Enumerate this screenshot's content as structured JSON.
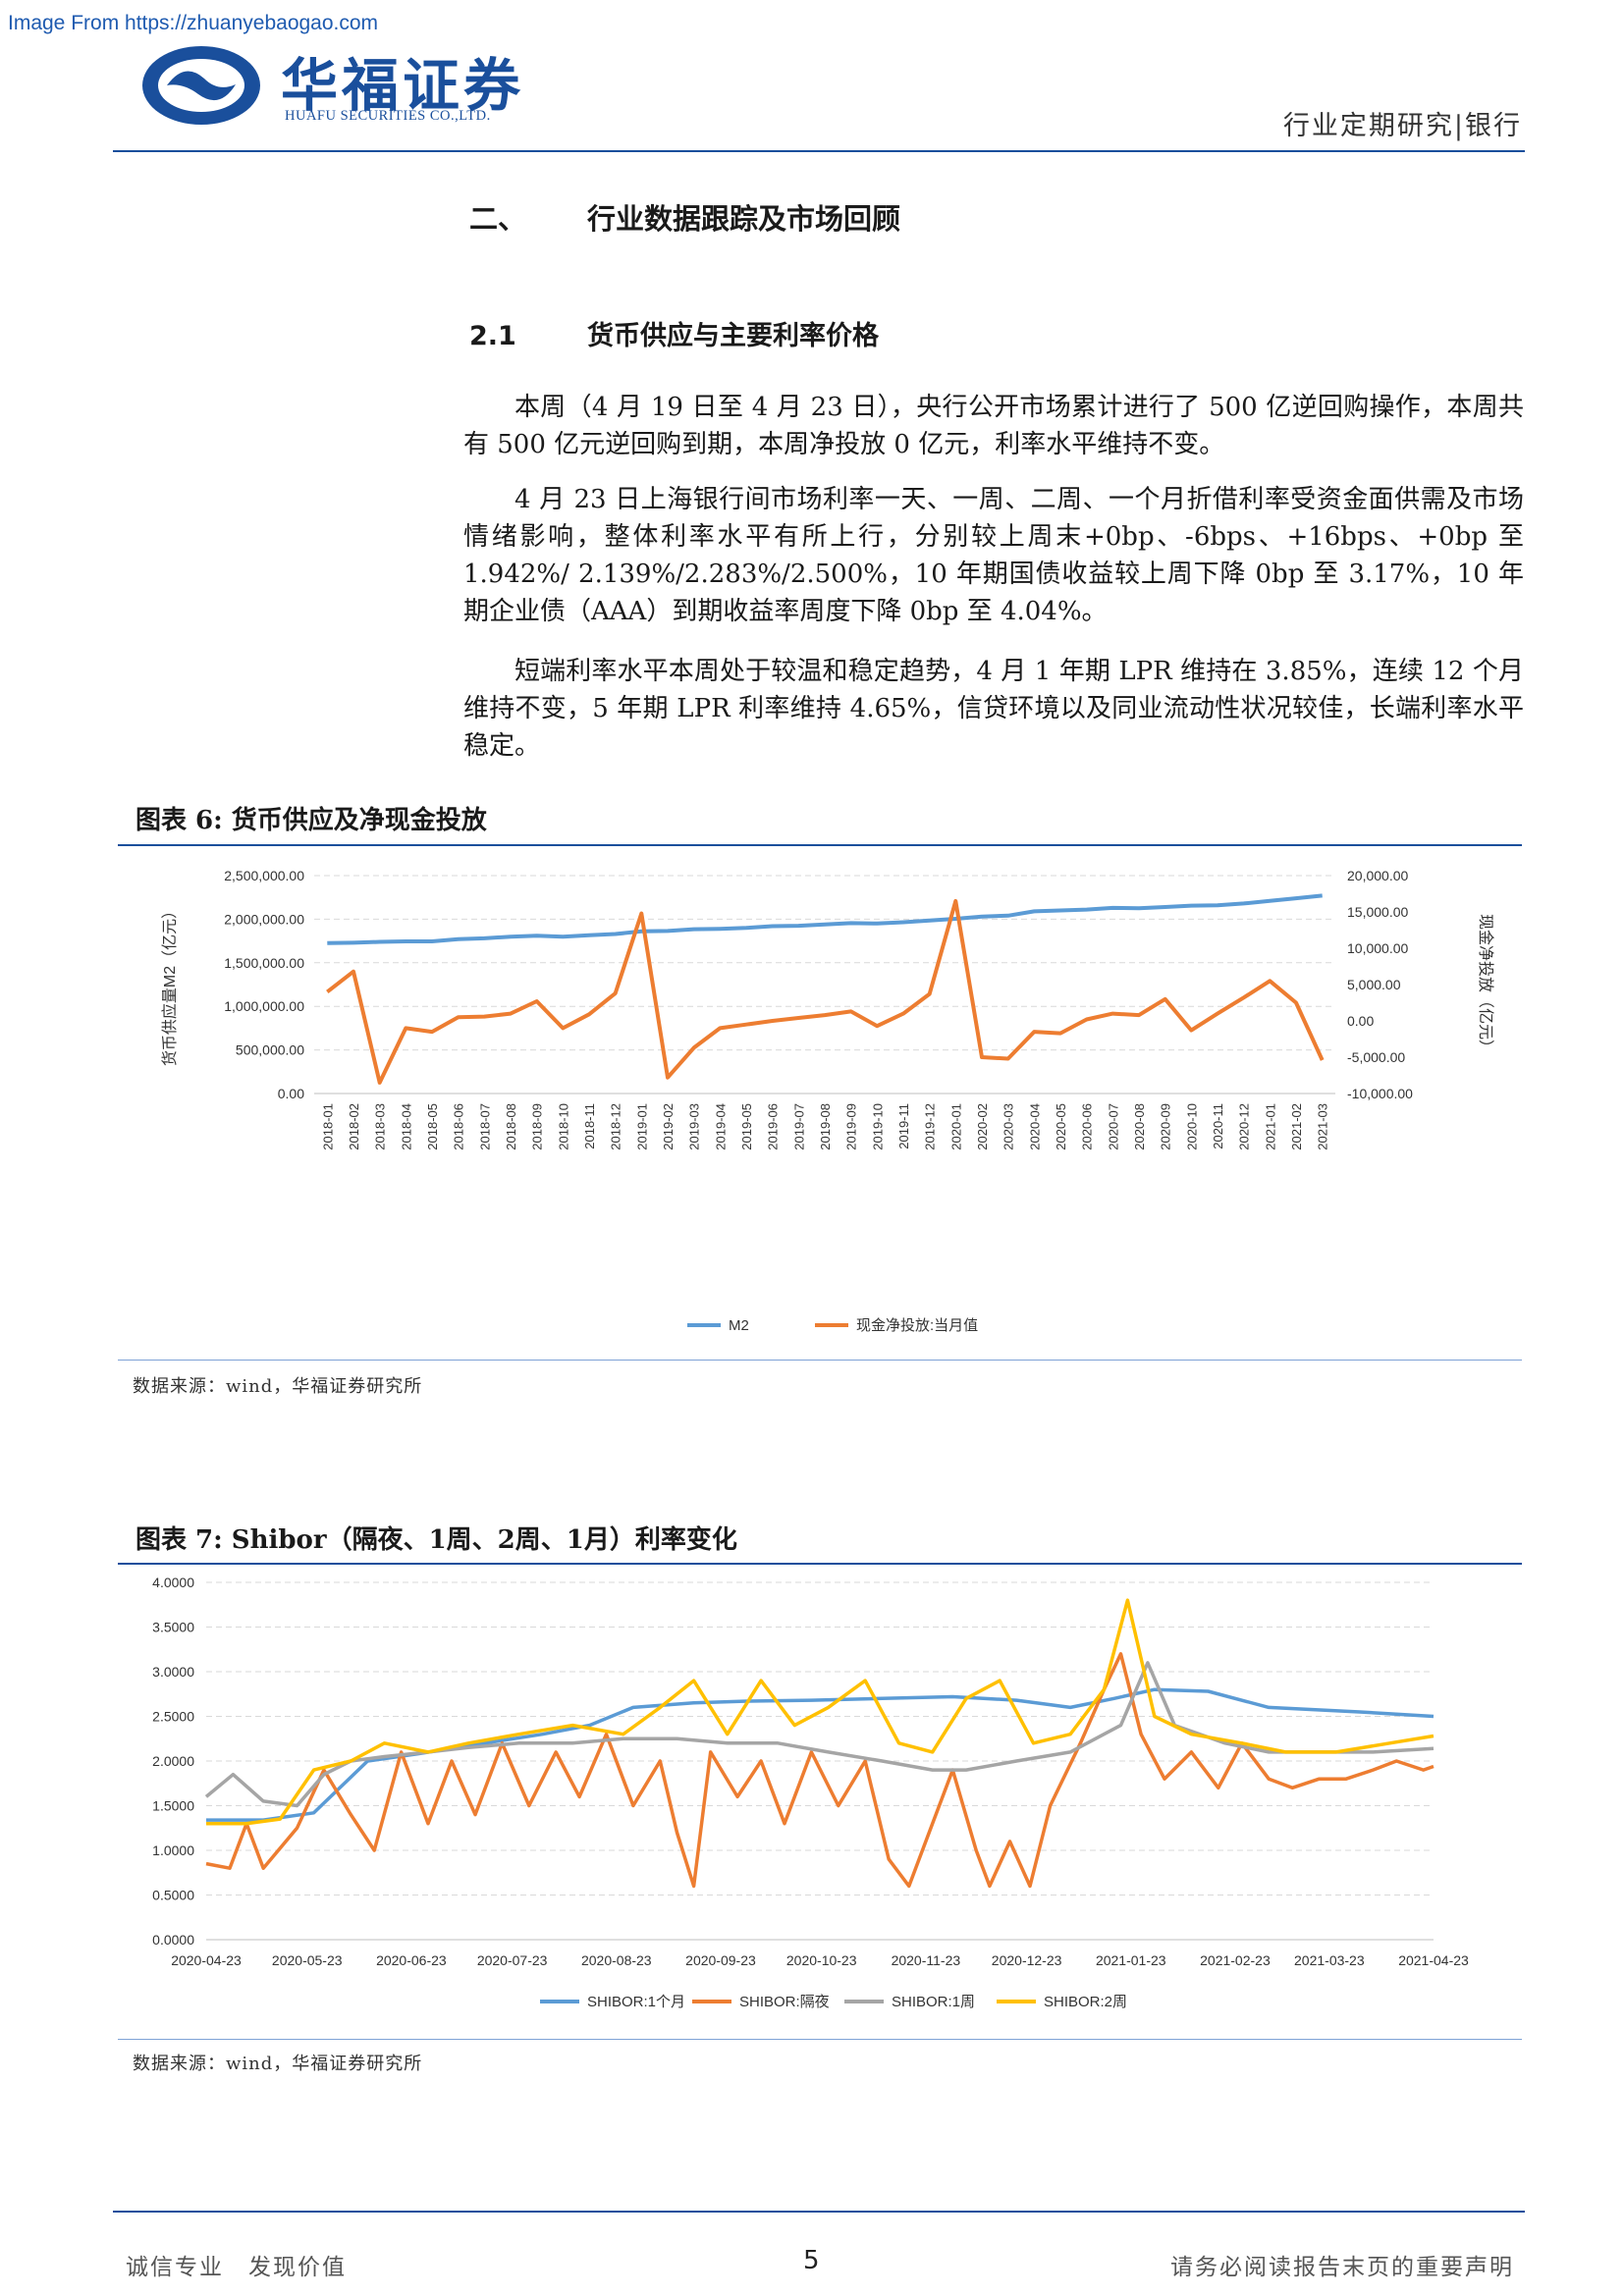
{
  "watermark": "Image From https://zhuanyebaogao.com",
  "header": {
    "company_cn": "华福证券",
    "company_en": "HUAFU SECURITIES CO.,LTD.",
    "section": "行业定期研究|银行",
    "colors": {
      "brand": "#1a4f9c"
    }
  },
  "section_heading": {
    "num": "二、",
    "title": "行业数据跟踪及市场回顾"
  },
  "subsection_heading": {
    "num": "2.1",
    "title": "货币供应与主要利率价格"
  },
  "paragraphs": [
    "本周（4 月 19 日至 4 月 23 日），央行公开市场累计进行了 500 亿逆回购操作，本周共有 500 亿元逆回购到期，本周净投放 0 亿元，利率水平维持不变。",
    "4 月 23 日上海银行间市场利率一天、一周、二周、一个月折借利率受资金面供需及市场情绪影响，整体利率水平有所上行，分别较上周末+0bp、-6bps、+16bps、+0bp 至 1.942%/ 2.139%/2.283%/2.500%，10 年期国债收益较上周下降 0bp 至 3.17%，10 年期企业债（AAA）到期收益率周度下降 0bp 至 4.04%。",
    "短端利率水平本周处于较温和稳定趋势，4 月 1 年期 LPR 维持在 3.85%，连续 12 个月维持不变，5 年期 LPR 利率维持 4.65%，信贷环境以及同业流动性状况较佳，长端利率水平稳定。"
  ],
  "figure6": {
    "title": "图表 6: 货币供应及净现金投放",
    "source": "数据来源：wind，华福证券研究所",
    "y_left_label": "货币供应量M2（亿元）",
    "y_right_label": "现金净投放（亿元）",
    "y_left_ticks": [
      "2,500,000.00",
      "2,000,000.00",
      "1,500,000.00",
      "1,000,000.00",
      "500,000.00",
      "0.00"
    ],
    "y_right_ticks": [
      "20,000.00",
      "15,000.00",
      "10,000.00",
      "5,000.00",
      "0.00",
      "-5,000.00",
      "-10,000.00"
    ],
    "legend": [
      "M2",
      "现金净投放:当月值"
    ]
  },
  "figure7": {
    "title": "图表 7: Shibor（隔夜、1周、2周、1月）利率变化",
    "source": "数据来源：wind，华福证券研究所",
    "y_ticks": [
      "4.0000",
      "3.5000",
      "3.0000",
      "2.5000",
      "2.0000",
      "1.5000",
      "1.0000",
      "0.5000",
      "0.0000"
    ],
    "x_ticks": [
      "2020-04-23",
      "2020-05-23",
      "2020-06-23",
      "2020-07-23",
      "2020-08-23",
      "2020-09-23",
      "2020-10-23",
      "2020-11-23",
      "2020-12-23",
      "2021-01-23",
      "2021-02-23",
      "2021-03-23",
      "2021-04-23"
    ],
    "legend": [
      "SHIBOR:1个月",
      "SHIBOR:隔夜",
      "SHIBOR:1周",
      "SHIBOR:2周"
    ]
  },
  "chart_data": [
    {
      "type": "line",
      "title": "",
      "categories": [
        "2018-01",
        "2018-02",
        "2018-03",
        "2018-04",
        "2018-05",
        "2018-06",
        "2018-07",
        "2018-08",
        "2018-09",
        "2018-10",
        "2018-11",
        "2018-12",
        "2019-01",
        "2019-02",
        "2019-03",
        "2019-04",
        "2019-05",
        "2019-06",
        "2019-07",
        "2019-08",
        "2019-09",
        "2019-10",
        "2019-11",
        "2019-12",
        "2020-01",
        "2020-02",
        "2020-03",
        "2020-04",
        "2020-05",
        "2020-06",
        "2020-07",
        "2020-08",
        "2020-09",
        "2020-10",
        "2020-11",
        "2020-12",
        "2021-01",
        "2021-02",
        "2021-03"
      ],
      "series": [
        {
          "name": "M2",
          "axis": "left",
          "color": "#5b9bd5",
          "values": [
            1725000,
            1730000,
            1740000,
            1745000,
            1745000,
            1770000,
            1780000,
            1800000,
            1810000,
            1800000,
            1815000,
            1830000,
            1860000,
            1865000,
            1885000,
            1890000,
            1900000,
            1920000,
            1925000,
            1940000,
            1955000,
            1950000,
            1965000,
            1985000,
            2005000,
            2030000,
            2040000,
            2090000,
            2100000,
            2110000,
            2130000,
            2125000,
            2140000,
            2155000,
            2160000,
            2180000,
            2210000,
            2240000,
            2270000
          ]
        },
        {
          "name": "现金净投放:当月值",
          "axis": "right",
          "color": "#ed7d31",
          "values": [
            4000,
            6800,
            -8500,
            -1000,
            -1500,
            500,
            600,
            1000,
            2700,
            -1000,
            900,
            3800,
            14800,
            -7800,
            -3700,
            -1000,
            -500,
            0,
            400,
            800,
            1300,
            -700,
            1000,
            3700,
            16500,
            -5000,
            -5200,
            -1500,
            -1700,
            200,
            1000,
            800,
            3000,
            -1300,
            1000,
            3200,
            5500,
            2500,
            -5400
          ]
        }
      ],
      "ylim_left": [
        0,
        2500000
      ],
      "ylim_right": [
        -10000,
        20000
      ],
      "ylabel_left": "货币供应量M2（亿元）",
      "ylabel_right": "现金净投放（亿元）",
      "grid": true,
      "legend": "bottom"
    },
    {
      "type": "line",
      "title": "",
      "x_range": [
        "2020-04-23",
        "2021-04-23"
      ],
      "ylim": [
        0,
        4
      ],
      "grid": true,
      "legend": "bottom",
      "series": [
        {
          "name": "SHIBOR:1个月",
          "color": "#5b9bd5",
          "points": [
            [
              "2020-04-23",
              1.34
            ],
            [
              "2020-05-10",
              1.34
            ],
            [
              "2020-05-25",
              1.42
            ],
            [
              "2020-06-10",
              2.0
            ],
            [
              "2020-06-25",
              2.08
            ],
            [
              "2020-07-15",
              2.2
            ],
            [
              "2020-08-01",
              2.3
            ],
            [
              "2020-08-15",
              2.4
            ],
            [
              "2020-08-28",
              2.6
            ],
            [
              "2020-09-15",
              2.65
            ],
            [
              "2020-10-01",
              2.67
            ],
            [
              "2020-10-20",
              2.68
            ],
            [
              "2020-11-10",
              2.7
            ],
            [
              "2020-12-01",
              2.72
            ],
            [
              "2020-12-20",
              2.68
            ],
            [
              "2021-01-05",
              2.6
            ],
            [
              "2021-01-18",
              2.7
            ],
            [
              "2021-01-30",
              2.8
            ],
            [
              "2021-02-15",
              2.78
            ],
            [
              "2021-03-05",
              2.6
            ],
            [
              "2021-04-01",
              2.55
            ],
            [
              "2021-04-23",
              2.5
            ]
          ]
        },
        {
          "name": "SHIBOR:隔夜",
          "color": "#ed7d31",
          "points": [
            [
              "2020-04-23",
              0.85
            ],
            [
              "2020-04-30",
              0.8
            ],
            [
              "2020-05-05",
              1.3
            ],
            [
              "2020-05-10",
              0.8
            ],
            [
              "2020-05-20",
              1.25
            ],
            [
              "2020-05-28",
              1.9
            ],
            [
              "2020-06-05",
              1.4
            ],
            [
              "2020-06-12",
              1.0
            ],
            [
              "2020-06-20",
              2.1
            ],
            [
              "2020-06-28",
              1.3
            ],
            [
              "2020-07-05",
              2.0
            ],
            [
              "2020-07-12",
              1.4
            ],
            [
              "2020-07-20",
              2.2
            ],
            [
              "2020-07-28",
              1.5
            ],
            [
              "2020-08-05",
              2.1
            ],
            [
              "2020-08-12",
              1.6
            ],
            [
              "2020-08-20",
              2.3
            ],
            [
              "2020-08-28",
              1.5
            ],
            [
              "2020-09-05",
              2.0
            ],
            [
              "2020-09-10",
              1.2
            ],
            [
              "2020-09-15",
              0.6
            ],
            [
              "2020-09-20",
              2.1
            ],
            [
              "2020-09-28",
              1.6
            ],
            [
              "2020-10-05",
              2.0
            ],
            [
              "2020-10-12",
              1.3
            ],
            [
              "2020-10-20",
              2.1
            ],
            [
              "2020-10-28",
              1.5
            ],
            [
              "2020-11-05",
              2.0
            ],
            [
              "2020-11-12",
              0.9
            ],
            [
              "2020-11-18",
              0.6
            ],
            [
              "2020-11-25",
              1.3
            ],
            [
              "2020-12-01",
              1.9
            ],
            [
              "2020-12-08",
              1.0
            ],
            [
              "2020-12-12",
              0.6
            ],
            [
              "2020-12-18",
              1.1
            ],
            [
              "2020-12-24",
              0.6
            ],
            [
              "2020-12-30",
              1.5
            ],
            [
              "2021-01-08",
              2.2
            ],
            [
              "2021-01-15",
              2.8
            ],
            [
              "2021-01-20",
              3.2
            ],
            [
              "2021-01-26",
              2.3
            ],
            [
              "2021-02-02",
              1.8
            ],
            [
              "2021-02-10",
              2.1
            ],
            [
              "2021-02-18",
              1.7
            ],
            [
              "2021-02-25",
              2.2
            ],
            [
              "2021-03-05",
              1.8
            ],
            [
              "2021-03-12",
              1.7
            ],
            [
              "2021-03-20",
              1.8
            ],
            [
              "2021-03-28",
              1.8
            ],
            [
              "2021-04-05",
              1.9
            ],
            [
              "2021-04-12",
              2.0
            ],
            [
              "2021-04-20",
              1.9
            ],
            [
              "2021-04-23",
              1.94
            ]
          ]
        },
        {
          "name": "SHIBOR:1周",
          "color": "#a5a5a5",
          "points": [
            [
              "2020-04-23",
              1.6
            ],
            [
              "2020-05-01",
              1.85
            ],
            [
              "2020-05-10",
              1.55
            ],
            [
              "2020-05-20",
              1.5
            ],
            [
              "2020-05-28",
              1.85
            ],
            [
              "2020-06-05",
              2.0
            ],
            [
              "2020-06-15",
              2.05
            ],
            [
              "2020-06-28",
              2.1
            ],
            [
              "2020-07-10",
              2.15
            ],
            [
              "2020-07-25",
              2.2
            ],
            [
              "2020-08-10",
              2.2
            ],
            [
              "2020-08-25",
              2.25
            ],
            [
              "2020-09-10",
              2.25
            ],
            [
              "2020-09-25",
              2.2
            ],
            [
              "2020-10-10",
              2.2
            ],
            [
              "2020-10-25",
              2.1
            ],
            [
              "2020-11-10",
              2.0
            ],
            [
              "2020-11-25",
              1.9
            ],
            [
              "2020-12-05",
              1.9
            ],
            [
              "2020-12-20",
              2.0
            ],
            [
              "2021-01-05",
              2.1
            ],
            [
              "2021-01-20",
              2.4
            ],
            [
              "2021-01-28",
              3.1
            ],
            [
              "2021-02-05",
              2.4
            ],
            [
              "2021-02-20",
              2.2
            ],
            [
              "2021-03-05",
              2.1
            ],
            [
              "2021-03-20",
              2.1
            ],
            [
              "2021-04-05",
              2.1
            ],
            [
              "2021-04-23",
              2.14
            ]
          ]
        },
        {
          "name": "SHIBOR:2周",
          "color": "#ffc000",
          "points": [
            [
              "2020-04-23",
              1.3
            ],
            [
              "2020-05-05",
              1.3
            ],
            [
              "2020-05-15",
              1.35
            ],
            [
              "2020-05-25",
              1.9
            ],
            [
              "2020-06-05",
              2.0
            ],
            [
              "2020-06-15",
              2.2
            ],
            [
              "2020-06-28",
              2.1
            ],
            [
              "2020-07-10",
              2.2
            ],
            [
              "2020-07-25",
              2.3
            ],
            [
              "2020-08-10",
              2.4
            ],
            [
              "2020-08-25",
              2.3
            ],
            [
              "2020-09-05",
              2.6
            ],
            [
              "2020-09-15",
              2.9
            ],
            [
              "2020-09-25",
              2.3
            ],
            [
              "2020-10-05",
              2.9
            ],
            [
              "2020-10-15",
              2.4
            ],
            [
              "2020-10-25",
              2.6
            ],
            [
              "2020-11-05",
              2.9
            ],
            [
              "2020-11-15",
              2.2
            ],
            [
              "2020-11-25",
              2.1
            ],
            [
              "2020-12-05",
              2.7
            ],
            [
              "2020-12-15",
              2.9
            ],
            [
              "2020-12-25",
              2.2
            ],
            [
              "2021-01-05",
              2.3
            ],
            [
              "2021-01-15",
              2.8
            ],
            [
              "2021-01-22",
              3.8
            ],
            [
              "2021-01-30",
              2.5
            ],
            [
              "2021-02-10",
              2.3
            ],
            [
              "2021-02-25",
              2.2
            ],
            [
              "2021-03-10",
              2.1
            ],
            [
              "2021-03-25",
              2.1
            ],
            [
              "2021-04-10",
              2.2
            ],
            [
              "2021-04-23",
              2.28
            ]
          ]
        }
      ]
    }
  ]
}
